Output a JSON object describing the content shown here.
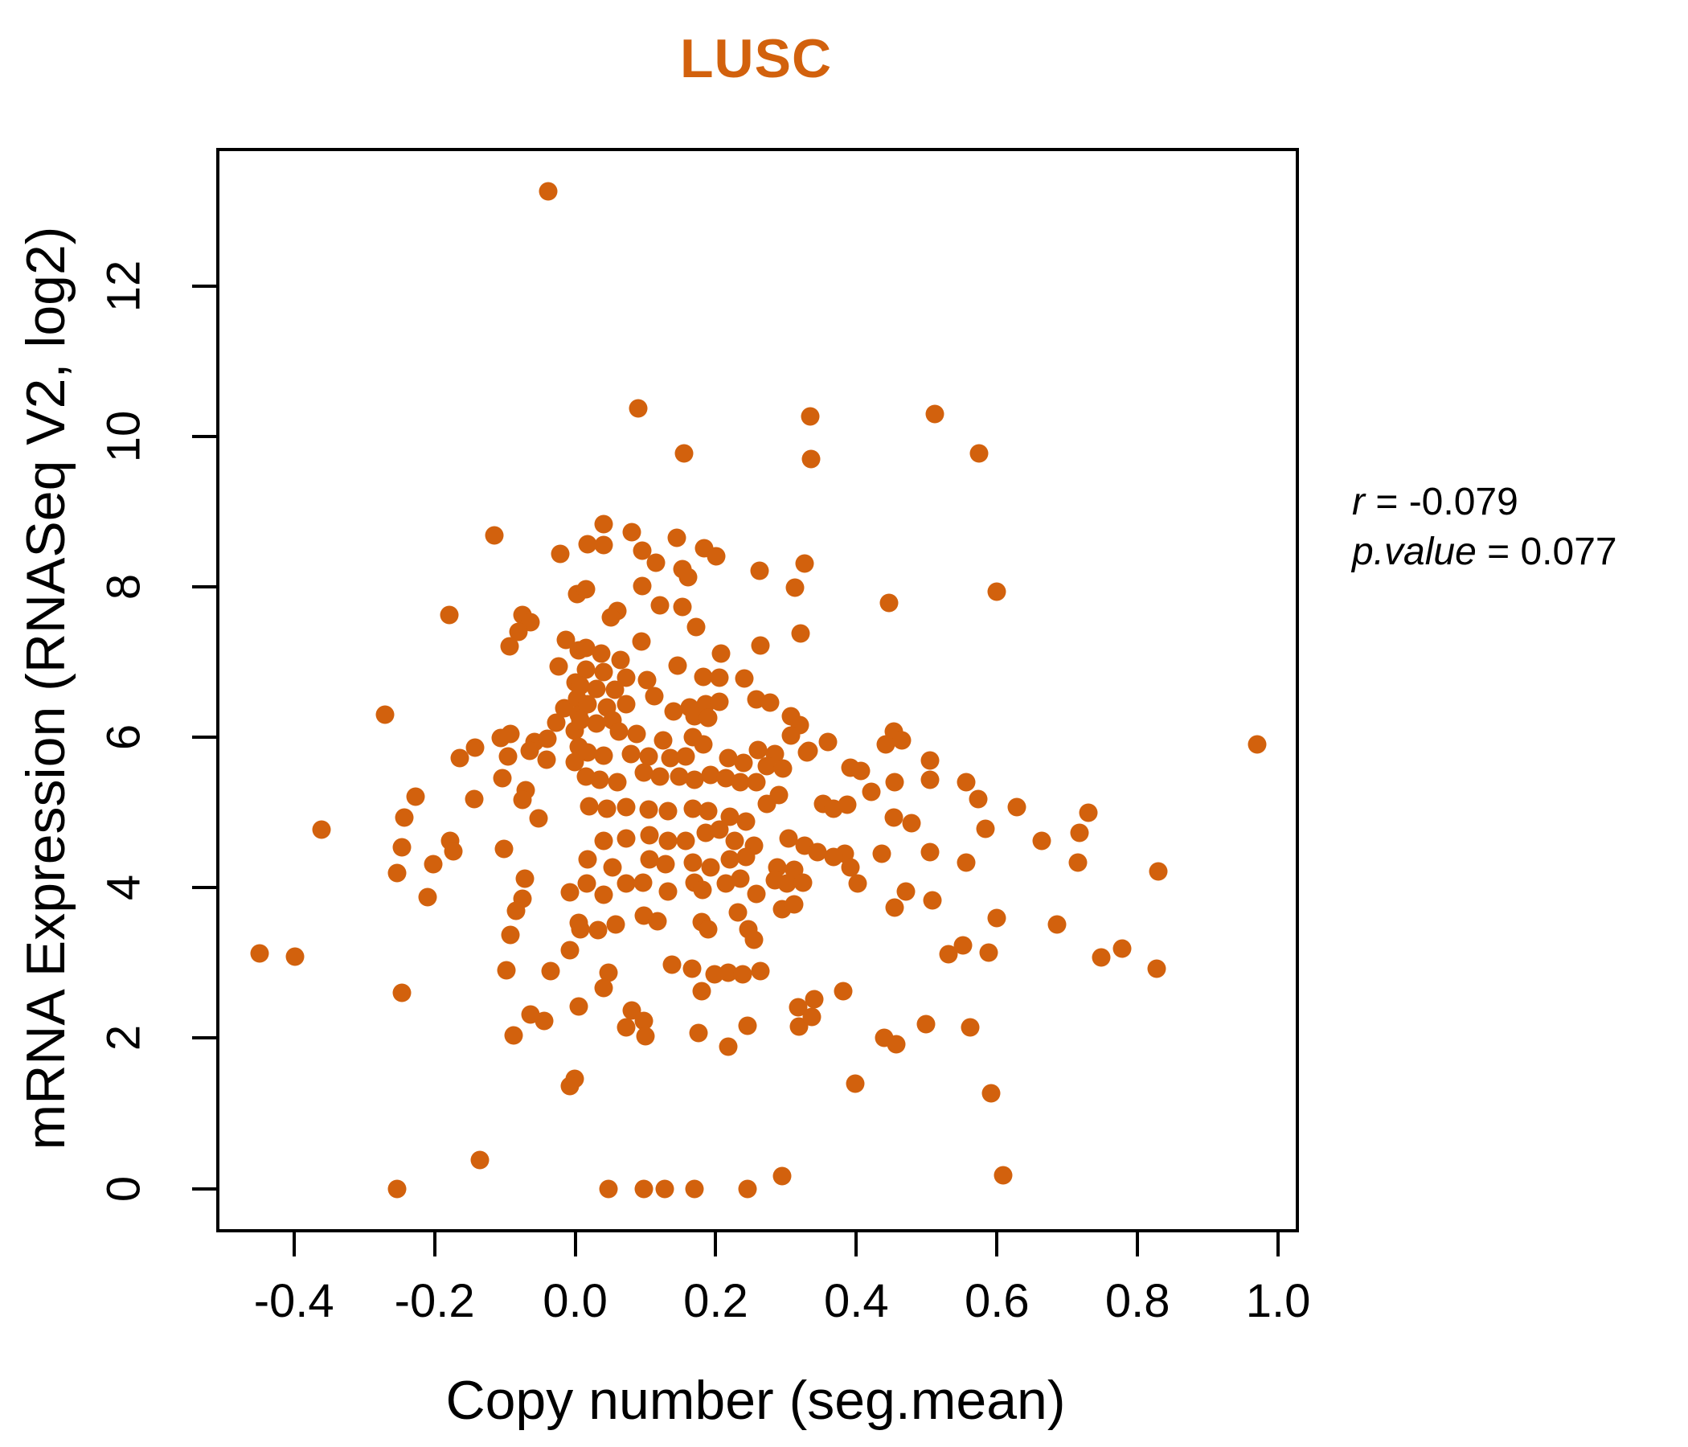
{
  "figure": {
    "title": "LUSC",
    "x_axis_label": "Copy number (seg.mean)",
    "y_axis_label": "mRNA Expression (RNASeq V2, log2)",
    "annotation": {
      "r_name": "r",
      "r_rest": " = -0.079",
      "p_name": "p.value",
      "p_rest": " = 0.077"
    }
  },
  "colors": {
    "accent": "#D2610D",
    "text": "#000000"
  },
  "chart_data": {
    "type": "scatter",
    "title": "LUSC",
    "xlabel": "Copy number (seg.mean)",
    "ylabel": "mRNA Expression (RNASeq V2, log2)",
    "xlim": [
      -0.506,
      1.025
    ],
    "ylim": [
      -0.54,
      13.8
    ],
    "grid": false,
    "legend": "none",
    "point_color": "#D2610D",
    "correlation_r": "-0.079",
    "p_value": "0.077",
    "xticks": [
      {
        "v": -0.4,
        "label": "-0.4"
      },
      {
        "v": -0.2,
        "label": "-0.2"
      },
      {
        "v": 0.0,
        "label": "0.0"
      },
      {
        "v": 0.2,
        "label": "0.2"
      },
      {
        "v": 0.4,
        "label": "0.4"
      },
      {
        "v": 0.6,
        "label": "0.6"
      },
      {
        "v": 0.8,
        "label": "0.8"
      },
      {
        "v": 1.0,
        "label": "1.0"
      }
    ],
    "yticks": [
      {
        "v": 0,
        "label": "0"
      },
      {
        "v": 2,
        "label": "2"
      },
      {
        "v": 4,
        "label": "4"
      },
      {
        "v": 6,
        "label": "6"
      },
      {
        "v": 8,
        "label": "8"
      },
      {
        "v": 10,
        "label": "10"
      },
      {
        "v": 12,
        "label": "12"
      }
    ],
    "points": [
      [
        -0.038,
        13.26
      ],
      [
        0.09,
        10.38
      ],
      [
        0.155,
        9.78
      ],
      [
        0.334,
        10.27
      ],
      [
        0.335,
        9.7
      ],
      [
        0.512,
        10.3
      ],
      [
        0.574,
        9.78
      ],
      [
        -0.115,
        8.69
      ],
      [
        -0.021,
        8.44
      ],
      [
        0.003,
        7.91
      ],
      [
        -0.179,
        7.63
      ],
      [
        -0.075,
        7.63
      ],
      [
        -0.063,
        7.53
      ],
      [
        -0.081,
        7.41
      ],
      [
        -0.093,
        7.21
      ],
      [
        -0.013,
        7.3
      ],
      [
        0.005,
        7.16
      ],
      [
        -0.023,
        6.95
      ],
      [
        0.001,
        6.73
      ],
      [
        -0.271,
        6.3
      ],
      [
        -0.016,
        6.39
      ],
      [
        -0.027,
        6.2
      ],
      [
        -0.092,
        6.05
      ],
      [
        -0.106,
        5.99
      ],
      [
        -0.058,
        5.94
      ],
      [
        -0.039,
        5.98
      ],
      [
        -0.142,
        5.87
      ],
      [
        -0.164,
        5.73
      ],
      [
        -0.096,
        5.75
      ],
      [
        -0.065,
        5.82
      ],
      [
        -0.041,
        5.7
      ],
      [
        -0.104,
        5.46
      ],
      [
        -0.07,
        5.3
      ],
      [
        -0.075,
        5.17
      ],
      [
        -0.227,
        5.21
      ],
      [
        -0.243,
        4.93
      ],
      [
        -0.144,
        5.18
      ],
      [
        -0.178,
        4.63
      ],
      [
        -0.173,
        4.49
      ],
      [
        -0.361,
        4.77
      ],
      [
        -0.101,
        4.52
      ],
      [
        -0.247,
        4.54
      ],
      [
        -0.202,
        4.31
      ],
      [
        -0.253,
        4.2
      ],
      [
        -0.052,
        4.92
      ],
      [
        0.003,
        6.52
      ],
      [
        0.005,
        6.3
      ],
      [
        -0.001,
        6.09
      ],
      [
        0.005,
        5.88
      ],
      [
        -0.001,
        5.67
      ],
      [
        0.041,
        8.84
      ],
      [
        0.081,
        8.73
      ],
      [
        0.018,
        8.57
      ],
      [
        0.041,
        8.56
      ],
      [
        0.145,
        8.66
      ],
      [
        0.095,
        8.48
      ],
      [
        0.184,
        8.52
      ],
      [
        0.201,
        8.41
      ],
      [
        0.115,
        8.32
      ],
      [
        0.153,
        8.24
      ],
      [
        0.161,
        8.13
      ],
      [
        0.262,
        8.22
      ],
      [
        0.326,
        8.31
      ],
      [
        0.313,
        7.99
      ],
      [
        0.095,
        8.02
      ],
      [
        0.015,
        7.97
      ],
      [
        0.121,
        7.76
      ],
      [
        0.153,
        7.74
      ],
      [
        0.06,
        7.68
      ],
      [
        0.051,
        7.6
      ],
      [
        0.446,
        7.79
      ],
      [
        0.172,
        7.47
      ],
      [
        0.321,
        7.38
      ],
      [
        0.094,
        7.28
      ],
      [
        0.263,
        7.22
      ],
      [
        0.208,
        7.12
      ],
      [
        0.015,
        7.19
      ],
      [
        0.037,
        7.12
      ],
      [
        0.064,
        7.03
      ],
      [
        0.146,
        6.96
      ],
      [
        0.015,
        6.9
      ],
      [
        0.041,
        6.87
      ],
      [
        0.072,
        6.8
      ],
      [
        0.102,
        6.76
      ],
      [
        0.182,
        6.81
      ],
      [
        0.205,
        6.8
      ],
      [
        0.241,
        6.78
      ],
      [
        0.007,
        6.69
      ],
      [
        0.03,
        6.65
      ],
      [
        0.056,
        6.64
      ],
      [
        0.113,
        6.55
      ],
      [
        0.258,
        6.51
      ],
      [
        0.277,
        6.46
      ],
      [
        0.018,
        6.44
      ],
      [
        0.045,
        6.4
      ],
      [
        0.073,
        6.44
      ],
      [
        0.163,
        6.4
      ],
      [
        0.186,
        6.44
      ],
      [
        0.205,
        6.48
      ],
      [
        0.14,
        6.35
      ],
      [
        0.17,
        6.28
      ],
      [
        0.189,
        6.26
      ],
      [
        0.307,
        6.28
      ],
      [
        0.319,
        6.16
      ],
      [
        0.053,
        6.23
      ],
      [
        0.03,
        6.19
      ],
      [
        0.007,
        6.23
      ],
      [
        0.062,
        6.08
      ],
      [
        0.087,
        6.05
      ],
      [
        0.125,
        5.96
      ],
      [
        0.168,
        6.0
      ],
      [
        0.182,
        5.91
      ],
      [
        0.307,
        6.03
      ],
      [
        0.332,
        5.82
      ],
      [
        0.36,
        5.94
      ],
      [
        0.453,
        6.08
      ],
      [
        0.465,
        5.96
      ],
      [
        0.442,
        5.91
      ],
      [
        0.018,
        5.8
      ],
      [
        0.041,
        5.76
      ],
      [
        0.079,
        5.78
      ],
      [
        0.104,
        5.75
      ],
      [
        0.136,
        5.73
      ],
      [
        0.157,
        5.75
      ],
      [
        0.218,
        5.73
      ],
      [
        0.239,
        5.66
      ],
      [
        0.26,
        5.83
      ],
      [
        0.284,
        5.78
      ],
      [
        0.273,
        5.62
      ],
      [
        0.296,
        5.59
      ],
      [
        0.33,
        5.8
      ],
      [
        0.391,
        5.6
      ],
      [
        0.406,
        5.55
      ],
      [
        0.505,
        5.69
      ],
      [
        0.015,
        5.48
      ],
      [
        0.035,
        5.44
      ],
      [
        0.06,
        5.41
      ],
      [
        0.098,
        5.53
      ],
      [
        0.121,
        5.48
      ],
      [
        0.148,
        5.48
      ],
      [
        0.17,
        5.44
      ],
      [
        0.193,
        5.5
      ],
      [
        0.214,
        5.46
      ],
      [
        0.235,
        5.41
      ],
      [
        0.258,
        5.41
      ],
      [
        0.29,
        5.23
      ],
      [
        0.273,
        5.12
      ],
      [
        0.421,
        5.28
      ],
      [
        0.455,
        5.41
      ],
      [
        0.505,
        5.44
      ],
      [
        0.02,
        5.09
      ],
      [
        0.045,
        5.05
      ],
      [
        0.073,
        5.07
      ],
      [
        0.104,
        5.04
      ],
      [
        0.132,
        5.02
      ],
      [
        0.167,
        5.05
      ],
      [
        0.189,
        5.02
      ],
      [
        0.22,
        4.95
      ],
      [
        0.243,
        4.88
      ],
      [
        0.353,
        5.12
      ],
      [
        0.368,
        5.05
      ],
      [
        0.387,
        5.11
      ],
      [
        0.453,
        4.93
      ],
      [
        0.478,
        4.86
      ],
      [
        0.041,
        4.63
      ],
      [
        0.072,
        4.66
      ],
      [
        0.106,
        4.7
      ],
      [
        0.132,
        4.63
      ],
      [
        0.157,
        4.63
      ],
      [
        0.186,
        4.73
      ],
      [
        0.205,
        4.77
      ],
      [
        0.227,
        4.63
      ],
      [
        0.254,
        4.56
      ],
      [
        0.303,
        4.66
      ],
      [
        0.326,
        4.56
      ],
      [
        0.345,
        4.48
      ],
      [
        0.383,
        4.45
      ],
      [
        0.436,
        4.45
      ],
      [
        0.505,
        4.48
      ],
      [
        0.018,
        4.38
      ],
      [
        0.053,
        4.27
      ],
      [
        0.106,
        4.38
      ],
      [
        0.129,
        4.31
      ],
      [
        0.167,
        4.34
      ],
      [
        0.193,
        4.27
      ],
      [
        0.22,
        4.38
      ],
      [
        0.243,
        4.41
      ],
      [
        0.288,
        4.27
      ],
      [
        0.311,
        4.24
      ],
      [
        0.368,
        4.41
      ],
      [
        0.391,
        4.27
      ],
      [
        0.6,
        7.94
      ],
      [
        0.97,
        5.91
      ],
      [
        0.556,
        5.41
      ],
      [
        0.573,
        5.18
      ],
      [
        0.628,
        5.07
      ],
      [
        0.73,
        5.0
      ],
      [
        0.584,
        4.79
      ],
      [
        0.664,
        4.63
      ],
      [
        0.717,
        4.73
      ],
      [
        0.556,
        4.34
      ],
      [
        0.715,
        4.34
      ],
      [
        0.829,
        4.22
      ],
      [
        -0.21,
        3.88
      ],
      [
        -0.071,
        4.12
      ],
      [
        -0.075,
        3.86
      ],
      [
        -0.084,
        3.69
      ],
      [
        -0.008,
        3.94
      ],
      [
        0.005,
        3.53
      ],
      [
        -0.092,
        3.37
      ],
      [
        -0.008,
        3.17
      ],
      [
        -0.449,
        3.13
      ],
      [
        -0.398,
        3.08
      ],
      [
        -0.247,
        2.6
      ],
      [
        -0.098,
        2.9
      ],
      [
        -0.035,
        2.89
      ],
      [
        -0.064,
        2.31
      ],
      [
        -0.044,
        2.23
      ],
      [
        -0.088,
        2.04
      ],
      [
        0.005,
        2.42
      ],
      [
        -0.001,
        1.46
      ],
      [
        -0.008,
        1.36
      ],
      [
        -0.136,
        0.38
      ],
      [
        -0.253,
        -0.01
      ],
      [
        0.016,
        4.06
      ],
      [
        0.041,
        3.91
      ],
      [
        0.072,
        4.06
      ],
      [
        0.096,
        4.07
      ],
      [
        0.132,
        3.95
      ],
      [
        0.17,
        4.07
      ],
      [
        0.181,
        3.97
      ],
      [
        0.214,
        4.06
      ],
      [
        0.235,
        4.12
      ],
      [
        0.258,
        3.92
      ],
      [
        0.284,
        4.1
      ],
      [
        0.301,
        4.06
      ],
      [
        0.324,
        4.07
      ],
      [
        0.402,
        4.06
      ],
      [
        0.471,
        3.95
      ],
      [
        0.455,
        3.74
      ],
      [
        0.508,
        3.83
      ],
      [
        0.098,
        3.63
      ],
      [
        0.117,
        3.56
      ],
      [
        0.058,
        3.51
      ],
      [
        0.032,
        3.44
      ],
      [
        0.007,
        3.45
      ],
      [
        0.18,
        3.55
      ],
      [
        0.189,
        3.45
      ],
      [
        0.231,
        3.67
      ],
      [
        0.246,
        3.45
      ],
      [
        0.254,
        3.31
      ],
      [
        0.294,
        3.72
      ],
      [
        0.311,
        3.78
      ],
      [
        0.138,
        2.98
      ],
      [
        0.166,
        2.92
      ],
      [
        0.047,
        2.87
      ],
      [
        0.041,
        2.67
      ],
      [
        0.081,
        2.37
      ],
      [
        0.098,
        2.23
      ],
      [
        0.072,
        2.14
      ],
      [
        0.1,
        2.03
      ],
      [
        0.176,
        2.07
      ],
      [
        0.218,
        1.89
      ],
      [
        0.245,
        2.17
      ],
      [
        0.198,
        2.85
      ],
      [
        0.218,
        2.87
      ],
      [
        0.238,
        2.85
      ],
      [
        0.263,
        2.89
      ],
      [
        0.18,
        2.62
      ],
      [
        0.317,
        2.41
      ],
      [
        0.318,
        2.15
      ],
      [
        0.337,
        2.28
      ],
      [
        0.34,
        2.52
      ],
      [
        0.381,
        2.63
      ],
      [
        0.398,
        1.4
      ],
      [
        0.44,
        2.01
      ],
      [
        0.457,
        1.92
      ],
      [
        0.499,
        2.19
      ],
      [
        0.047,
        0.0
      ],
      [
        0.098,
        0.0
      ],
      [
        0.128,
        0.0
      ],
      [
        0.17,
        0.0
      ],
      [
        0.245,
        0.0
      ],
      [
        0.294,
        0.17
      ],
      [
        0.6,
        3.6
      ],
      [
        0.685,
        3.51
      ],
      [
        0.531,
        3.12
      ],
      [
        0.552,
        3.23
      ],
      [
        0.588,
        3.14
      ],
      [
        0.748,
        3.07
      ],
      [
        0.778,
        3.19
      ],
      [
        0.827,
        2.92
      ],
      [
        0.562,
        2.14
      ],
      [
        0.592,
        1.27
      ],
      [
        0.609,
        0.18
      ]
    ]
  }
}
